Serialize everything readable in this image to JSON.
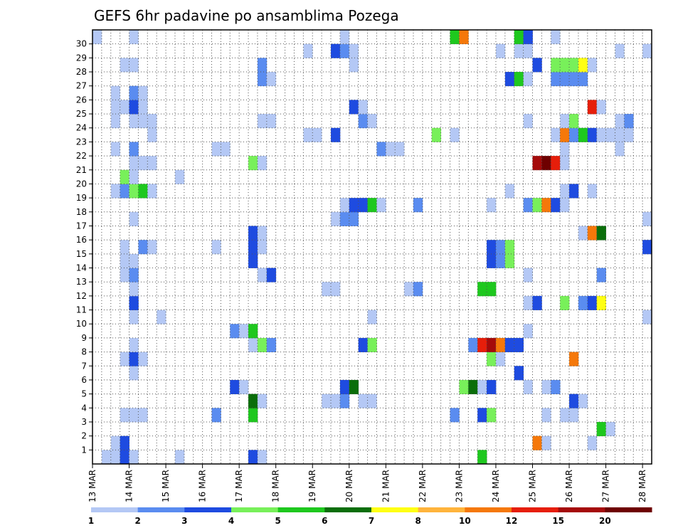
{
  "chart_data": {
    "type": "heatmap",
    "title": "GEFS 6hr padavine po ansamblima Pozega",
    "xlabel": "",
    "ylabel": "",
    "x_tick_labels": [
      "13 MAR",
      "14 MAR",
      "15 MAR",
      "16 MAR",
      "17 MAR",
      "18 MAR",
      "19 MAR",
      "20 MAR",
      "21 MAR",
      "22 MAR",
      "23 MAR",
      "24 MAR",
      "25 MAR",
      "26 MAR",
      "27 MAR",
      "28 MAR"
    ],
    "y_tick_labels": [
      "1",
      "2",
      "3",
      "4",
      "5",
      "6",
      "7",
      "8",
      "9",
      "10",
      "11",
      "12",
      "13",
      "14",
      "15",
      "16",
      "17",
      "18",
      "19",
      "20",
      "21",
      "22",
      "23",
      "24",
      "25",
      "26",
      "27",
      "28",
      "29",
      "30"
    ],
    "time_steps": 61,
    "members": 31,
    "grid": true,
    "legend_placement": "bottom",
    "color_scale": {
      "labels": [
        "1",
        "2",
        "3",
        "4",
        "5",
        "6",
        "7",
        "8",
        "10",
        "12",
        "15",
        "20"
      ],
      "colors": [
        "#b4c8f5",
        "#5a8cf0",
        "#1e4be0",
        "#78f05a",
        "#1ec81e",
        "#0a6e0a",
        "#ffff14",
        "#ffb43c",
        "#f5780a",
        "#e61e0a",
        "#a50a0a",
        "#6e0000"
      ]
    },
    "values": [
      {
        "m": 0,
        "t": 1,
        "v": 1
      },
      {
        "m": 0,
        "t": 2,
        "v": 1.5
      },
      {
        "m": 0,
        "t": 3,
        "v": 3.5
      },
      {
        "m": 0,
        "t": 4,
        "v": 1.5
      },
      {
        "m": 0,
        "t": 9,
        "v": 1
      },
      {
        "m": 0,
        "t": 17,
        "v": 3.5
      },
      {
        "m": 0,
        "t": 18,
        "v": 1.5
      },
      {
        "m": 0,
        "t": 42,
        "v": 5.5
      },
      {
        "m": 1,
        "t": 2,
        "v": 1.5
      },
      {
        "m": 1,
        "t": 3,
        "v": 3.5
      },
      {
        "m": 1,
        "t": 48,
        "v": 10.5
      },
      {
        "m": 1,
        "t": 49,
        "v": 1.5
      },
      {
        "m": 1,
        "t": 54,
        "v": 1.5
      },
      {
        "m": 2,
        "t": 55,
        "v": 5.5
      },
      {
        "m": 2,
        "t": 56,
        "v": 1.5
      },
      {
        "m": 3,
        "t": 3,
        "v": 1.5
      },
      {
        "m": 3,
        "t": 4,
        "v": 1.5
      },
      {
        "m": 3,
        "t": 5,
        "v": 1.5
      },
      {
        "m": 3,
        "t": 13,
        "v": 2.5
      },
      {
        "m": 3,
        "t": 17,
        "v": 5.5
      },
      {
        "m": 3,
        "t": 39,
        "v": 2.5
      },
      {
        "m": 3,
        "t": 42,
        "v": 3.5
      },
      {
        "m": 3,
        "t": 43,
        "v": 4.5
      },
      {
        "m": 3,
        "t": 49,
        "v": 1.5
      },
      {
        "m": 3,
        "t": 51,
        "v": 1.5
      },
      {
        "m": 3,
        "t": 52,
        "v": 1.5
      },
      {
        "m": 4,
        "t": 17,
        "v": 6.5
      },
      {
        "m": 4,
        "t": 18,
        "v": 1.5
      },
      {
        "m": 4,
        "t": 25,
        "v": 1.5
      },
      {
        "m": 4,
        "t": 26,
        "v": 1.5
      },
      {
        "m": 4,
        "t": 27,
        "v": 2.5
      },
      {
        "m": 4,
        "t": 29,
        "v": 1.5
      },
      {
        "m": 4,
        "t": 30,
        "v": 1.5
      },
      {
        "m": 4,
        "t": 52,
        "v": 3.5
      },
      {
        "m": 4,
        "t": 53,
        "v": 1.5
      },
      {
        "m": 5,
        "t": 15,
        "v": 3.5
      },
      {
        "m": 5,
        "t": 16,
        "v": 1.5
      },
      {
        "m": 5,
        "t": 27,
        "v": 3.5
      },
      {
        "m": 5,
        "t": 28,
        "v": 6.5
      },
      {
        "m": 5,
        "t": 40,
        "v": 4.5
      },
      {
        "m": 5,
        "t": 41,
        "v": 6.5
      },
      {
        "m": 5,
        "t": 42,
        "v": 1.5
      },
      {
        "m": 5,
        "t": 43,
        "v": 3.5
      },
      {
        "m": 5,
        "t": 47,
        "v": 1.5
      },
      {
        "m": 5,
        "t": 49,
        "v": 1.5
      },
      {
        "m": 5,
        "t": 50,
        "v": 2.5
      },
      {
        "m": 6,
        "t": 4,
        "v": 1.5
      },
      {
        "m": 6,
        "t": 46,
        "v": 3.5
      },
      {
        "m": 7,
        "t": 3,
        "v": 1.5
      },
      {
        "m": 7,
        "t": 4,
        "v": 3.5
      },
      {
        "m": 7,
        "t": 5,
        "v": 1.5
      },
      {
        "m": 7,
        "t": 43,
        "v": 4.5
      },
      {
        "m": 7,
        "t": 44,
        "v": 1.5
      },
      {
        "m": 7,
        "t": 52,
        "v": 10.5
      },
      {
        "m": 8,
        "t": 4,
        "v": 1.5
      },
      {
        "m": 8,
        "t": 17,
        "v": 1.5
      },
      {
        "m": 8,
        "t": 18,
        "v": 4.5
      },
      {
        "m": 8,
        "t": 19,
        "v": 2.5
      },
      {
        "m": 8,
        "t": 29,
        "v": 3.5
      },
      {
        "m": 8,
        "t": 30,
        "v": 4.5
      },
      {
        "m": 8,
        "t": 41,
        "v": 2.5
      },
      {
        "m": 8,
        "t": 42,
        "v": 13
      },
      {
        "m": 8,
        "t": 43,
        "v": 17
      },
      {
        "m": 8,
        "t": 44,
        "v": 10.5
      },
      {
        "m": 8,
        "t": 45,
        "v": 3.5
      },
      {
        "m": 8,
        "t": 46,
        "v": 3.5
      },
      {
        "m": 9,
        "t": 15,
        "v": 2.5
      },
      {
        "m": 9,
        "t": 16,
        "v": 1.5
      },
      {
        "m": 9,
        "t": 17,
        "v": 5.5
      },
      {
        "m": 9,
        "t": 47,
        "v": 1.5
      },
      {
        "m": 10,
        "t": 4,
        "v": 1.5
      },
      {
        "m": 10,
        "t": 7,
        "v": 1.5
      },
      {
        "m": 10,
        "t": 30,
        "v": 1.5
      },
      {
        "m": 10,
        "t": 60,
        "v": 1.5
      },
      {
        "m": 11,
        "t": 4,
        "v": 3.5
      },
      {
        "m": 11,
        "t": 47,
        "v": 1.5
      },
      {
        "m": 11,
        "t": 48,
        "v": 3.5
      },
      {
        "m": 11,
        "t": 51,
        "v": 4.5
      },
      {
        "m": 11,
        "t": 53,
        "v": 2.5
      },
      {
        "m": 11,
        "t": 54,
        "v": 3.5
      },
      {
        "m": 11,
        "t": 55,
        "v": 7.5
      },
      {
        "m": 12,
        "t": 4,
        "v": 1.5
      },
      {
        "m": 12,
        "t": 25,
        "v": 1.5
      },
      {
        "m": 12,
        "t": 26,
        "v": 1.5
      },
      {
        "m": 12,
        "t": 34,
        "v": 1.5
      },
      {
        "m": 12,
        "t": 35,
        "v": 2.5
      },
      {
        "m": 12,
        "t": 42,
        "v": 5.5
      },
      {
        "m": 12,
        "t": 43,
        "v": 5.5
      },
      {
        "m": 13,
        "t": 3,
        "v": 1.5
      },
      {
        "m": 13,
        "t": 4,
        "v": 2.5
      },
      {
        "m": 13,
        "t": 18,
        "v": 1.5
      },
      {
        "m": 13,
        "t": 19,
        "v": 3.5
      },
      {
        "m": 13,
        "t": 47,
        "v": 1.5
      },
      {
        "m": 13,
        "t": 55,
        "v": 2.5
      },
      {
        "m": 14,
        "t": 3,
        "v": 1.5
      },
      {
        "m": 14,
        "t": 4,
        "v": 1.5
      },
      {
        "m": 14,
        "t": 17,
        "v": 3.5
      },
      {
        "m": 14,
        "t": 43,
        "v": 3.5
      },
      {
        "m": 14,
        "t": 44,
        "v": 2.5
      },
      {
        "m": 14,
        "t": 45,
        "v": 4.5
      },
      {
        "m": 15,
        "t": 3,
        "v": 1.5
      },
      {
        "m": 15,
        "t": 5,
        "v": 2.5
      },
      {
        "m": 15,
        "t": 6,
        "v": 1.5
      },
      {
        "m": 15,
        "t": 13,
        "v": 1.5
      },
      {
        "m": 15,
        "t": 17,
        "v": 3.5
      },
      {
        "m": 15,
        "t": 18,
        "v": 1.5
      },
      {
        "m": 15,
        "t": 43,
        "v": 3.5
      },
      {
        "m": 15,
        "t": 44,
        "v": 2.5
      },
      {
        "m": 15,
        "t": 45,
        "v": 4.5
      },
      {
        "m": 15,
        "t": 60,
        "v": 3.5
      },
      {
        "m": 16,
        "t": 17,
        "v": 3.5
      },
      {
        "m": 16,
        "t": 18,
        "v": 1.5
      },
      {
        "m": 16,
        "t": 53,
        "v": 1.5
      },
      {
        "m": 16,
        "t": 54,
        "v": 10.5
      },
      {
        "m": 16,
        "t": 55,
        "v": 6.5
      },
      {
        "m": 17,
        "t": 4,
        "v": 1.5
      },
      {
        "m": 17,
        "t": 26,
        "v": 1.5
      },
      {
        "m": 17,
        "t": 27,
        "v": 2.5
      },
      {
        "m": 17,
        "t": 28,
        "v": 2.5
      },
      {
        "m": 17,
        "t": 60,
        "v": 1.5
      },
      {
        "m": 18,
        "t": 27,
        "v": 1.5
      },
      {
        "m": 18,
        "t": 28,
        "v": 3.5
      },
      {
        "m": 18,
        "t": 29,
        "v": 3.5
      },
      {
        "m": 18,
        "t": 30,
        "v": 5.5
      },
      {
        "m": 18,
        "t": 31,
        "v": 1.5
      },
      {
        "m": 18,
        "t": 35,
        "v": 2.5
      },
      {
        "m": 18,
        "t": 43,
        "v": 1.5
      },
      {
        "m": 18,
        "t": 47,
        "v": 2.5
      },
      {
        "m": 18,
        "t": 48,
        "v": 4.5
      },
      {
        "m": 18,
        "t": 49,
        "v": 10.5
      },
      {
        "m": 18,
        "t": 50,
        "v": 3.5
      },
      {
        "m": 18,
        "t": 51,
        "v": 1.5
      },
      {
        "m": 19,
        "t": 2,
        "v": 1.5
      },
      {
        "m": 19,
        "t": 3,
        "v": 2.5
      },
      {
        "m": 19,
        "t": 4,
        "v": 4.5
      },
      {
        "m": 19,
        "t": 5,
        "v": 5.5
      },
      {
        "m": 19,
        "t": 6,
        "v": 1.5
      },
      {
        "m": 19,
        "t": 45,
        "v": 1.5
      },
      {
        "m": 19,
        "t": 51,
        "v": 1.5
      },
      {
        "m": 19,
        "t": 52,
        "v": 3.5
      },
      {
        "m": 19,
        "t": 54,
        "v": 1.5
      },
      {
        "m": 20,
        "t": 3,
        "v": 4.5
      },
      {
        "m": 20,
        "t": 4,
        "v": 1.5
      },
      {
        "m": 20,
        "t": 9,
        "v": 1.5
      },
      {
        "m": 21,
        "t": 4,
        "v": 1.5
      },
      {
        "m": 21,
        "t": 5,
        "v": 1.5
      },
      {
        "m": 21,
        "t": 6,
        "v": 1.5
      },
      {
        "m": 21,
        "t": 17,
        "v": 4.5
      },
      {
        "m": 21,
        "t": 18,
        "v": 1.5
      },
      {
        "m": 21,
        "t": 48,
        "v": 17
      },
      {
        "m": 21,
        "t": 49,
        "v": 22
      },
      {
        "m": 21,
        "t": 50,
        "v": 13
      },
      {
        "m": 21,
        "t": 51,
        "v": 1.5
      },
      {
        "m": 22,
        "t": 2,
        "v": 1.5
      },
      {
        "m": 22,
        "t": 4,
        "v": 2.5
      },
      {
        "m": 22,
        "t": 13,
        "v": 1.5
      },
      {
        "m": 22,
        "t": 14,
        "v": 1.5
      },
      {
        "m": 22,
        "t": 31,
        "v": 2.5
      },
      {
        "m": 22,
        "t": 32,
        "v": 1.5
      },
      {
        "m": 22,
        "t": 33,
        "v": 1.5
      },
      {
        "m": 22,
        "t": 51,
        "v": 1.5
      },
      {
        "m": 22,
        "t": 57,
        "v": 1.5
      },
      {
        "m": 23,
        "t": 6,
        "v": 1.5
      },
      {
        "m": 23,
        "t": 23,
        "v": 1.5
      },
      {
        "m": 23,
        "t": 24,
        "v": 1.5
      },
      {
        "m": 23,
        "t": 26,
        "v": 3.5
      },
      {
        "m": 23,
        "t": 37,
        "v": 4.5
      },
      {
        "m": 23,
        "t": 39,
        "v": 1.5
      },
      {
        "m": 23,
        "t": 50,
        "v": 1.5
      },
      {
        "m": 23,
        "t": 51,
        "v": 10.5
      },
      {
        "m": 23,
        "t": 52,
        "v": 2.5
      },
      {
        "m": 23,
        "t": 53,
        "v": 5.5
      },
      {
        "m": 23,
        "t": 54,
        "v": 3.5
      },
      {
        "m": 23,
        "t": 55,
        "v": 1.5
      },
      {
        "m": 23,
        "t": 56,
        "v": 1.5
      },
      {
        "m": 23,
        "t": 57,
        "v": 1.5
      },
      {
        "m": 23,
        "t": 58,
        "v": 1.5
      },
      {
        "m": 24,
        "t": 2,
        "v": 1.5
      },
      {
        "m": 24,
        "t": 4,
        "v": 1.5
      },
      {
        "m": 24,
        "t": 5,
        "v": 1.5
      },
      {
        "m": 24,
        "t": 6,
        "v": 1.5
      },
      {
        "m": 24,
        "t": 18,
        "v": 1.5
      },
      {
        "m": 24,
        "t": 19,
        "v": 1.5
      },
      {
        "m": 24,
        "t": 29,
        "v": 2.5
      },
      {
        "m": 24,
        "t": 30,
        "v": 1.5
      },
      {
        "m": 24,
        "t": 47,
        "v": 1.5
      },
      {
        "m": 24,
        "t": 51,
        "v": 1.5
      },
      {
        "m": 24,
        "t": 52,
        "v": 4.5
      },
      {
        "m": 24,
        "t": 57,
        "v": 1.5
      },
      {
        "m": 24,
        "t": 58,
        "v": 2.5
      },
      {
        "m": 25,
        "t": 2,
        "v": 1.5
      },
      {
        "m": 25,
        "t": 3,
        "v": 1.5
      },
      {
        "m": 25,
        "t": 4,
        "v": 3.5
      },
      {
        "m": 25,
        "t": 5,
        "v": 1.5
      },
      {
        "m": 25,
        "t": 28,
        "v": 3.5
      },
      {
        "m": 25,
        "t": 29,
        "v": 1.5
      },
      {
        "m": 25,
        "t": 54,
        "v": 13
      },
      {
        "m": 25,
        "t": 55,
        "v": 1.5
      },
      {
        "m": 26,
        "t": 2,
        "v": 1.5
      },
      {
        "m": 26,
        "t": 4,
        "v": 2.5
      },
      {
        "m": 26,
        "t": 5,
        "v": 1.5
      },
      {
        "m": 27,
        "t": 18,
        "v": 2.5
      },
      {
        "m": 27,
        "t": 19,
        "v": 1.5
      },
      {
        "m": 27,
        "t": 45,
        "v": 3.5
      },
      {
        "m": 27,
        "t": 46,
        "v": 5.5
      },
      {
        "m": 27,
        "t": 47,
        "v": 1.5
      },
      {
        "m": 27,
        "t": 50,
        "v": 2.5
      },
      {
        "m": 27,
        "t": 51,
        "v": 2.5
      },
      {
        "m": 27,
        "t": 52,
        "v": 2.5
      },
      {
        "m": 27,
        "t": 53,
        "v": 2.5
      },
      {
        "m": 28,
        "t": 3,
        "v": 1.5
      },
      {
        "m": 28,
        "t": 4,
        "v": 1.5
      },
      {
        "m": 28,
        "t": 18,
        "v": 2.5
      },
      {
        "m": 28,
        "t": 28,
        "v": 1.5
      },
      {
        "m": 28,
        "t": 48,
        "v": 3.5
      },
      {
        "m": 28,
        "t": 50,
        "v": 4.5
      },
      {
        "m": 28,
        "t": 51,
        "v": 4.5
      },
      {
        "m": 28,
        "t": 52,
        "v": 4.5
      },
      {
        "m": 28,
        "t": 53,
        "v": 7.5
      },
      {
        "m": 28,
        "t": 54,
        "v": 1.5
      },
      {
        "m": 29,
        "t": 23,
        "v": 1.5
      },
      {
        "m": 29,
        "t": 26,
        "v": 3.5
      },
      {
        "m": 29,
        "t": 27,
        "v": 2.5
      },
      {
        "m": 29,
        "t": 28,
        "v": 1.5
      },
      {
        "m": 29,
        "t": 44,
        "v": 1.5
      },
      {
        "m": 29,
        "t": 46,
        "v": 1.5
      },
      {
        "m": 29,
        "t": 47,
        "v": 1.5
      },
      {
        "m": 29,
        "t": 57,
        "v": 1.5
      },
      {
        "m": 29,
        "t": 60,
        "v": 1.5
      },
      {
        "m": 30,
        "t": 0,
        "v": 1.5
      },
      {
        "m": 30,
        "t": 4,
        "v": 1.5
      },
      {
        "m": 30,
        "t": 27,
        "v": 1.5
      },
      {
        "m": 30,
        "t": 39,
        "v": 5.5
      },
      {
        "m": 30,
        "t": 40,
        "v": 10.5
      },
      {
        "m": 30,
        "t": 46,
        "v": 5.5
      },
      {
        "m": 30,
        "t": 47,
        "v": 3.5
      },
      {
        "m": 30,
        "t": 50,
        "v": 1.5
      }
    ]
  }
}
